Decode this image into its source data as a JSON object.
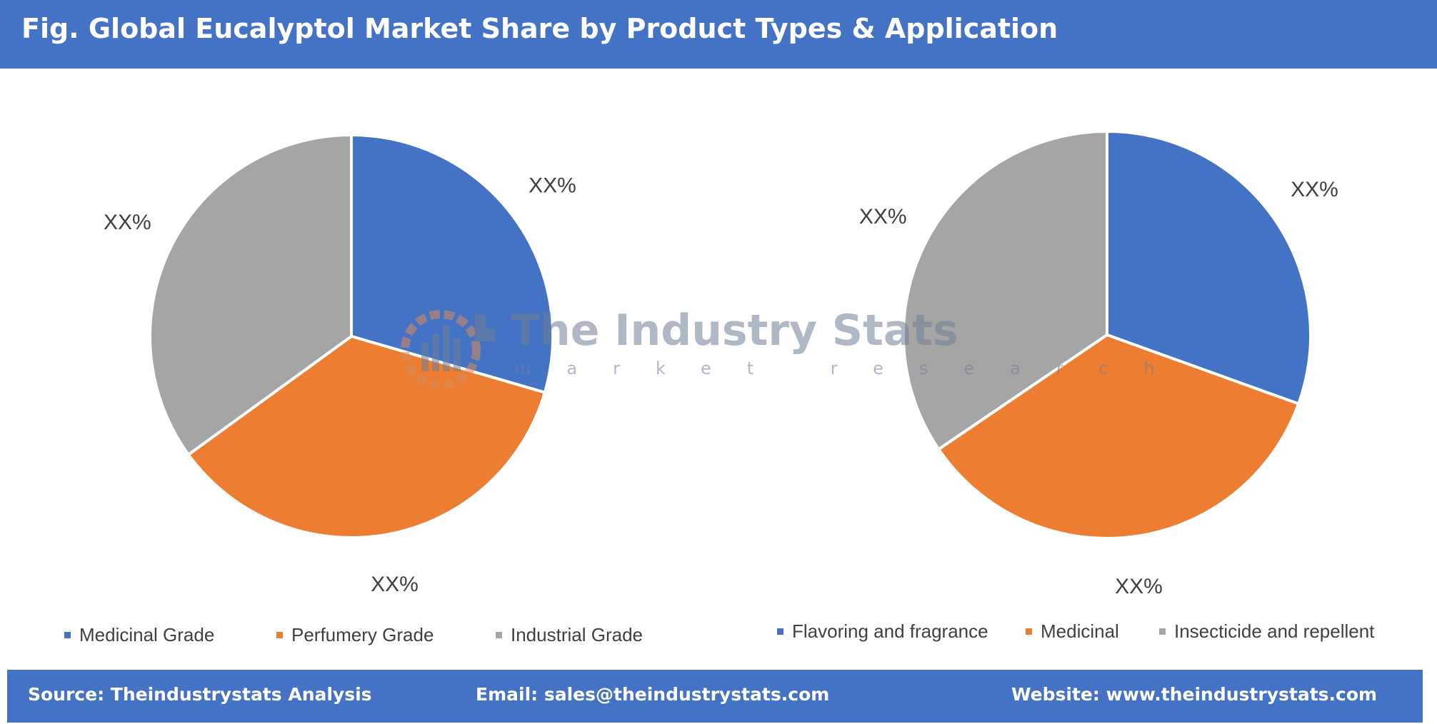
{
  "header": {
    "title": "Fig. Global Eucalyptol Market Share by Product Types & Application"
  },
  "colors": {
    "blue": "#4472c4",
    "orange": "#ed7d31",
    "gray": "#a5a5a5"
  },
  "chart_data": [
    {
      "type": "pie",
      "title": "",
      "slices": [
        {
          "label": "Medicinal Grade",
          "value": 29.5,
          "color": "#4472c4",
          "data_label": "XX%"
        },
        {
          "label": "Perfumery Grade",
          "value": 35.5,
          "color": "#ed7d31",
          "data_label": "XX%"
        },
        {
          "label": "Industrial Grade",
          "value": 35.0,
          "color": "#a5a5a5",
          "data_label": "XX%"
        }
      ],
      "legend_position": "bottom"
    },
    {
      "type": "pie",
      "title": "",
      "slices": [
        {
          "label": "Flavoring and fragrance",
          "value": 30.5,
          "color": "#4472c4",
          "data_label": "XX%"
        },
        {
          "label": "Medicinal",
          "value": 35.0,
          "color": "#ed7d31",
          "data_label": "XX%"
        },
        {
          "label": "Insecticide and repellent",
          "value": 34.5,
          "color": "#a5a5a5",
          "data_label": "XX%"
        }
      ],
      "legend_position": "bottom"
    }
  ],
  "watermark": {
    "name": "The Industry Stats",
    "sub": "market research"
  },
  "footer": {
    "source": "Source: Theindustrystats Analysis",
    "email": "Email: sales@theindustrystats.com",
    "website": "Website: www.theindustrystats.com"
  }
}
